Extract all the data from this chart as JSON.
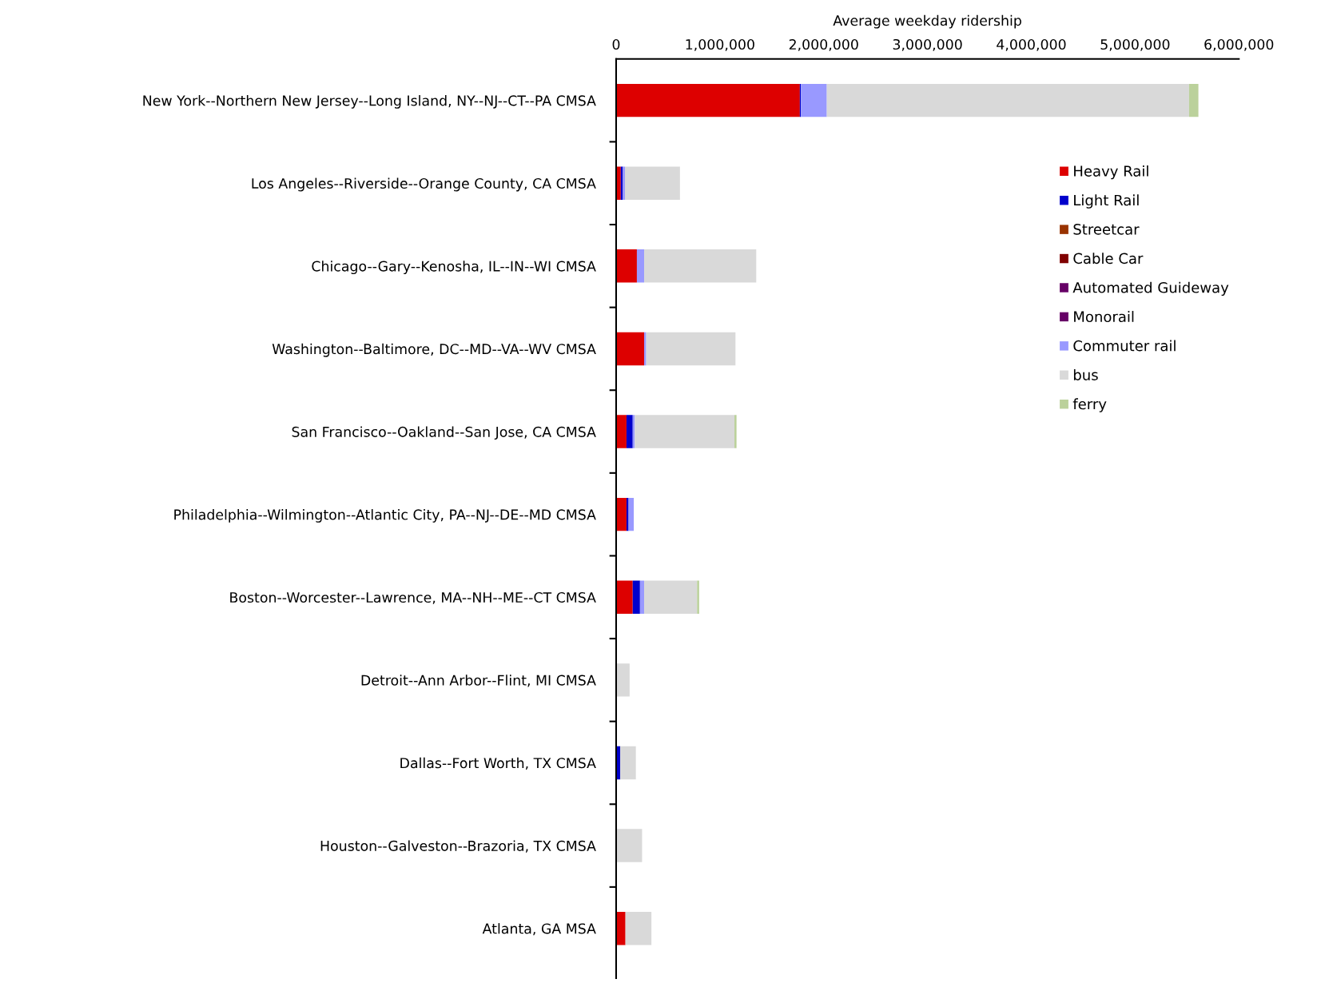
{
  "chart_data": {
    "type": "bar",
    "orientation": "horizontal",
    "stacked": true,
    "xlabel": "Average weekday ridership",
    "categories": [
      "New York--Northern New Jersey--Long Island, NY--NJ--CT--PA CMSA",
      "Los Angeles--Riverside--Orange County, CA CMSA",
      "Chicago--Gary--Kenosha, IL--IN--WI CMSA",
      "Washington--Baltimore, DC--MD--VA--WV CMSA",
      "San Francisco--Oakland--San Jose, CA CMSA",
      "Philadelphia--Wilmington--Atlantic City, PA--NJ--DE--MD CMSA",
      "Boston--Worcester--Lawrence, MA--NH--ME--CT CMSA",
      "Detroit--Ann Arbor--Flint, MI CMSA",
      "Dallas--Fort Worth, TX CMSA",
      "Houston--Galveston--Brazoria, TX CMSA",
      "Atlanta, GA MSA"
    ],
    "series": [
      {
        "name": "Heavy Rail",
        "color": "#dd0000",
        "values": [
          1770000,
          45000,
          200000,
          270000,
          100000,
          100000,
          160000,
          0,
          0,
          0,
          90000
        ]
      },
      {
        "name": "Light Rail",
        "color": "#0000cc",
        "values": [
          10000,
          20000,
          0,
          0,
          60000,
          20000,
          70000,
          0,
          40000,
          0,
          0
        ]
      },
      {
        "name": "Streetcar",
        "color": "#993300",
        "values": [
          0,
          0,
          0,
          0,
          0,
          0,
          0,
          0,
          0,
          0,
          0
        ]
      },
      {
        "name": "Cable Car",
        "color": "#800000",
        "values": [
          0,
          0,
          0,
          0,
          0,
          0,
          0,
          0,
          0,
          0,
          0
        ]
      },
      {
        "name": "Automated Guideway",
        "color": "#660066",
        "values": [
          0,
          0,
          0,
          0,
          0,
          0,
          0,
          0,
          0,
          0,
          0
        ]
      },
      {
        "name": "Monorail",
        "color": "#660066",
        "values": [
          0,
          0,
          0,
          0,
          0,
          0,
          0,
          0,
          0,
          0,
          0
        ]
      },
      {
        "name": "Commuter rail",
        "color": "#9999ff",
        "values": [
          250000,
          20000,
          70000,
          20000,
          20000,
          50000,
          40000,
          0,
          0,
          0,
          0
        ]
      },
      {
        "name": "bus",
        "color": "#d9d9d9",
        "values": [
          3490000,
          530000,
          1080000,
          860000,
          960000,
          0,
          510000,
          130000,
          150000,
          250000,
          250000
        ]
      },
      {
        "name": "ferry",
        "color": "#bbd19b",
        "values": [
          90000,
          0,
          0,
          0,
          20000,
          0,
          20000,
          0,
          0,
          0,
          0
        ]
      }
    ],
    "xlim": [
      0,
      6000000
    ],
    "xticks": [
      0,
      {
        "value": 1000000,
        "label": "1,000,000"
      },
      {
        "value": 2000000,
        "label": "2,000,000"
      },
      {
        "value": 3000000,
        "label": "3,000,000"
      },
      {
        "value": 4000000,
        "label": "4,000,000"
      },
      {
        "value": 5000000,
        "label": "5,000,000"
      },
      {
        "value": 6000000,
        "label": "6,000,000"
      }
    ],
    "grid": false,
    "legend": "right"
  }
}
